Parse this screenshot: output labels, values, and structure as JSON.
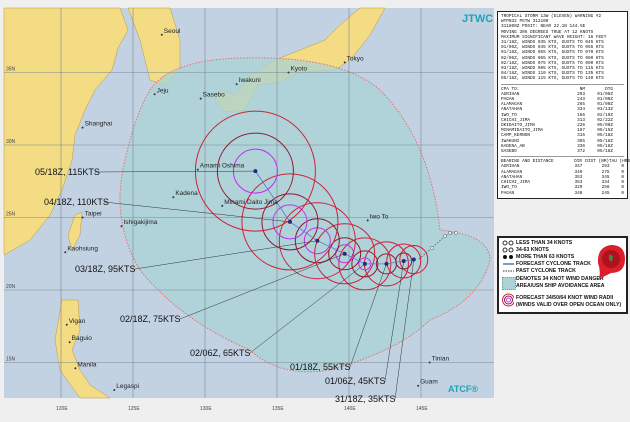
{
  "header": {
    "agency": "JTWC",
    "footer": "ATCF®"
  },
  "warning": {
    "lines": [
      "TROPICAL STORM 13W (ELEVEN) WARNING #2",
      "WTPN32 PGTW 312100",
      "311800Z POSIT: NEAR 22.1N 144.5E",
      "MOVING 305 DEGREES TRUE AT 12 KNOTS",
      "MAXIMUM SIGNIFICANT WAVE HEIGHT: 16 FEET",
      "31/18Z, WINDS 035 KTS, GUSTS TO 045 KTS",
      "01/06Z, WINDS 045 KTS, GUSTS TO 055 KTS",
      "01/18Z, WINDS 055 KTS, GUSTS TO 070 KTS",
      "02/06Z, WINDS 065 KTS, GUSTS TO 080 KTS",
      "02/18Z, WINDS 075 KTS, GUSTS TO 090 KTS",
      "03/18Z, WINDS 095 KTS, GUSTS TO 115 KTS",
      "04/18Z, WINDS 110 KTS, GUSTS TO 135 KTS",
      "05/18Z, WINDS 115 KTS, GUSTS TO 140 KTS"
    ]
  },
  "cpa": {
    "header": [
      "CPA TO:",
      "NM",
      "DTG"
    ],
    "rows": [
      [
        "AGRIHAN",
        "293",
        "01/00Z"
      ],
      [
        "PAGAN",
        "243",
        "01/00Z"
      ],
      [
        "ALAMAGAN",
        "265",
        "01/00Z"
      ],
      [
        "ANATAHAN",
        "334",
        "01/13Z"
      ],
      [
        "IWO_TO",
        "166",
        "02/19Z"
      ],
      [
        "CHICHI_JIMA",
        "313",
        "02/22Z"
      ],
      [
        "OKIDAITO_JIMA",
        "226",
        "05/00Z"
      ],
      [
        "MINAMIDAITO_JIMA",
        "187",
        "05/15Z"
      ],
      [
        "CAMP_KERNON",
        "315",
        "05/18Z"
      ],
      [
        "IWAKUNI",
        "365",
        "05/18Z"
      ],
      [
        "KADENA_AB",
        "336",
        "05/18Z"
      ],
      [
        "SASEBO",
        "372",
        "05/18Z"
      ]
    ]
  },
  "bearing": {
    "header": [
      "BEARING AND DISTANCE",
      "DIR",
      "DIST (NM)",
      "TAU (HRS)"
    ],
    "rows": [
      [
        "AGRIHAN",
        "347",
        "293",
        "0"
      ],
      [
        "ALAMAGAN",
        "349",
        "275",
        "0"
      ],
      [
        "ANATAHAN",
        "353",
        "345",
        "0"
      ],
      [
        "CHICHI_JIMA",
        "353",
        "334",
        "0"
      ],
      [
        "IWO_TO",
        "329",
        "256",
        "0"
      ],
      [
        "PAGAN",
        "348",
        "245",
        "0"
      ]
    ]
  },
  "legend": {
    "items": [
      "LESS THAN 34 KNOTS",
      "34-63 KNOTS",
      "MORE THAN 63 KNOTS",
      "FORECAST CYCLONE TRACK",
      "PAST CYCLONE TRACK",
      "DENOTES 34 KNOT WIND DANGER",
      "AREA/USN SHIP AVOIDANCE AREA",
      "FORECAST 34/50/64 KNOT WIND RADII",
      "(WINDS VALID OVER OPEN OCEAN ONLY)"
    ]
  },
  "colors": {
    "ocean": "#c3d2e2",
    "land": "#f3dc84",
    "danger": "#a9d3d6",
    "radii34": "#d0203a",
    "radii50": "#8c1a30",
    "radii64": "#c030f0",
    "track": "#5a78c8"
  },
  "axes": {
    "lon": [
      "120E",
      "125E",
      "130E",
      "135E",
      "140E",
      "145E"
    ],
    "lat": [
      "35N",
      "30N",
      "25N",
      "20N",
      "15N"
    ]
  },
  "forecast": [
    {
      "label": "31/18Z, 35KTS",
      "lon": 144.5,
      "lat": 22.1
    },
    {
      "label": "01/06Z, 45KTS",
      "lon": 143.8,
      "lat": 22.0
    },
    {
      "label": "01/18Z, 55KTS",
      "lon": 142.6,
      "lat": 21.8
    },
    {
      "label": "02/06Z, 65KTS",
      "lon": 141.1,
      "lat": 21.8
    },
    {
      "label": "02/18Z, 75KTS",
      "lon": 139.7,
      "lat": 22.5
    },
    {
      "label": "03/18Z, 95KTS",
      "lon": 137.8,
      "lat": 23.4
    },
    {
      "label": "04/18Z, 110KTS",
      "lon": 135.9,
      "lat": 24.7
    },
    {
      "label": "05/18Z, 115KTS",
      "lon": 133.5,
      "lat": 28.2
    }
  ],
  "places": [
    [
      "Seoul",
      127.0,
      37.6
    ],
    [
      "Jeju",
      126.5,
      33.5
    ],
    [
      "Sasebo",
      129.7,
      33.2
    ],
    [
      "Iwakuni",
      132.2,
      34.2
    ],
    [
      "Kyoto",
      135.8,
      35.0
    ],
    [
      "Tokyo",
      139.7,
      35.7
    ],
    [
      "Shanghai",
      121.5,
      31.2
    ],
    [
      "Amami Oshima",
      129.5,
      28.3
    ],
    [
      "Kadena",
      127.8,
      26.4
    ],
    [
      "Minami Daito Jima",
      131.2,
      25.8
    ],
    [
      "Iwo To",
      141.3,
      24.8
    ],
    [
      "Taipei",
      121.5,
      25.0
    ],
    [
      "Ishigakijima",
      124.2,
      24.4
    ],
    [
      "Kaohsiung",
      120.3,
      22.6
    ],
    [
      "Vigan",
      120.4,
      17.6
    ],
    [
      "Baguio",
      120.6,
      16.4
    ],
    [
      "Manila",
      121.0,
      14.6
    ],
    [
      "Legaspi",
      123.7,
      13.1
    ],
    [
      "Tinian",
      145.6,
      15.0
    ],
    [
      "Guam",
      144.8,
      13.4
    ]
  ]
}
